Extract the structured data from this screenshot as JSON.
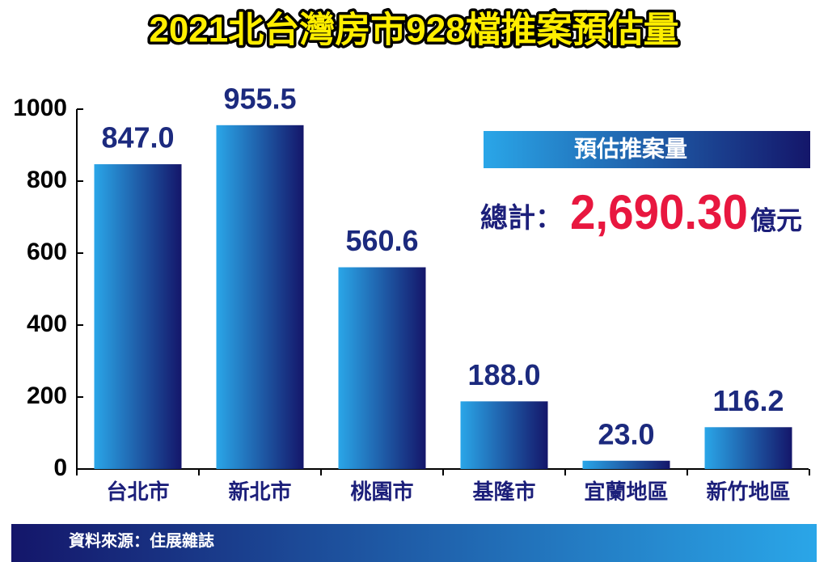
{
  "chart_data": {
    "type": "bar",
    "title": "2021北台灣房市928檔推案預估量",
    "categories": [
      "台北市",
      "新北市",
      "桃園市",
      "基隆市",
      "宜蘭地區",
      "新竹地區"
    ],
    "values": [
      847,
      955.5,
      560.6,
      188,
      23,
      116.2
    ],
    "value_labels": [
      "847.0",
      "955.5",
      "560.6",
      "188.0",
      "23.0",
      "116.2"
    ],
    "color": [
      "#2aa6e8",
      "#14166a"
    ],
    "ylim": [
      0,
      1000
    ],
    "yticks": [
      0,
      200,
      400,
      600,
      800,
      1000
    ],
    "box_title": "預估推案量",
    "total_label": "總計：",
    "total": "2,690.30",
    "total_unit": "億元",
    "source": "資料來源：住展雜誌"
  }
}
